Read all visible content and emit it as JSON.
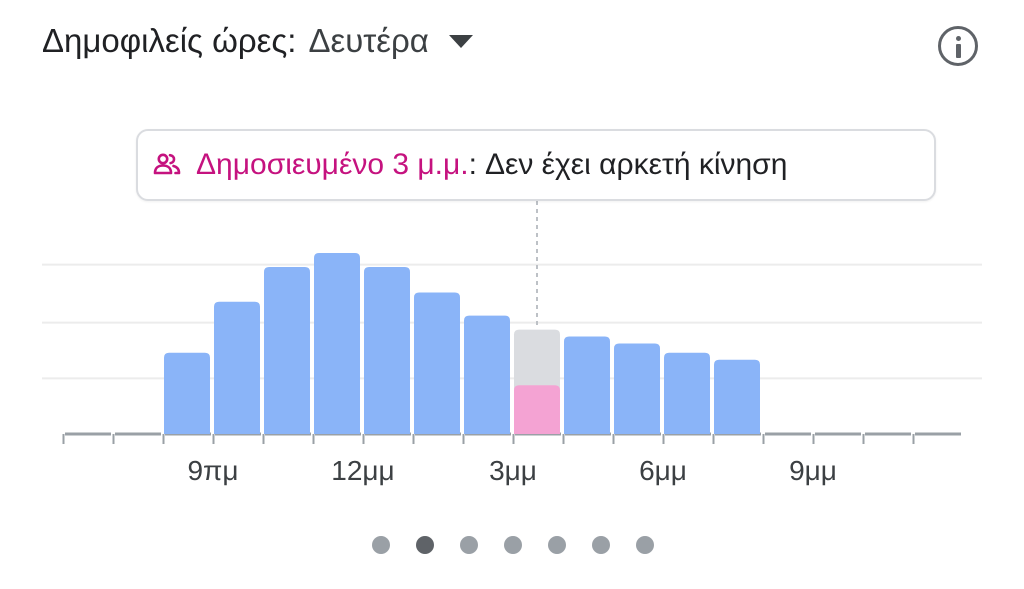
{
  "header": {
    "title": "Δημοφιλείς ώρες:",
    "selected_day": "Δευτέρα"
  },
  "tooltip": {
    "time": "Δημοσιευμένο 3 μ.μ.",
    "separator": ":",
    "status": "Δεν έχει αρκετή κίνηση"
  },
  "icons": {
    "info": "info-icon",
    "dropdown": "chevron-down-icon",
    "people": "people-icon"
  },
  "colors": {
    "bar": "#8ab4f8",
    "selected_bar_usual": "#dadce0",
    "selected_bar_live": "#f4a3d3",
    "accent": "#c5127f"
  },
  "chart_data": {
    "type": "bar",
    "x_labels": [
      "9πμ",
      "12μμ",
      "3μμ",
      "6μμ",
      "9μμ"
    ],
    "hours": [
      {
        "hour": "6πμ",
        "value": 0
      },
      {
        "hour": "7πμ",
        "value": 0
      },
      {
        "hour": "8πμ",
        "value": 35
      },
      {
        "hour": "9πμ",
        "value": 57
      },
      {
        "hour": "10πμ",
        "value": 72
      },
      {
        "hour": "11πμ",
        "value": 78
      },
      {
        "hour": "12μμ",
        "value": 72
      },
      {
        "hour": "1μμ",
        "value": 61
      },
      {
        "hour": "2μμ",
        "value": 51
      },
      {
        "hour": "3μμ",
        "value": 45,
        "live": 21,
        "selected": true
      },
      {
        "hour": "4μμ",
        "value": 42
      },
      {
        "hour": "5μμ",
        "value": 39
      },
      {
        "hour": "6μμ",
        "value": 35
      },
      {
        "hour": "7μμ",
        "value": 32
      },
      {
        "hour": "8μμ",
        "value": 0
      },
      {
        "hour": "9μμ",
        "value": 0
      },
      {
        "hour": "10μμ",
        "value": 0
      },
      {
        "hour": "11μμ",
        "value": 0
      }
    ],
    "label_hours": [
      "9πμ",
      "12μμ",
      "3μμ",
      "6μμ",
      "9μμ"
    ],
    "ylim": [
      0,
      100
    ],
    "grid": true
  },
  "pagination": {
    "count": 7,
    "active_index": 1
  }
}
